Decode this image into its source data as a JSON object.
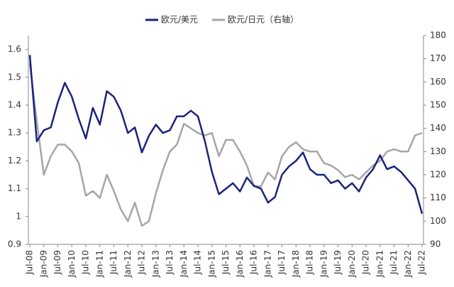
{
  "chart_data": {
    "type": "line",
    "categories": [
      "Jul-08",
      null,
      "Jan-09",
      null,
      "Jul-09",
      null,
      "Jan-10",
      null,
      "Jul-10",
      null,
      "Jan-11",
      null,
      "Jul-11",
      null,
      "Jan-12",
      null,
      "Jul-12",
      null,
      "Jan-13",
      null,
      "Jul-13",
      null,
      "Jan-14",
      null,
      "Jul-14",
      null,
      "Jan-15",
      null,
      "Jul-15",
      null,
      "Jan-16",
      null,
      "Jul-16",
      null,
      "Jan-17",
      null,
      "Jul-17",
      null,
      "Jan-18",
      null,
      "Jul-18",
      null,
      "Jan-19",
      null,
      "Jul-19",
      null,
      "Jan-20",
      null,
      "Jul-20",
      null,
      "Jan-21",
      null,
      "Jul-21",
      null,
      "Jan-22",
      null,
      "Jul-22"
    ],
    "series": [
      {
        "name": "欧元/美元",
        "color": "#1c2379",
        "axis": "y",
        "values": [
          1.58,
          1.27,
          1.31,
          1.32,
          1.41,
          1.48,
          1.43,
          1.35,
          1.28,
          1.39,
          1.33,
          1.45,
          1.43,
          1.38,
          1.3,
          1.32,
          1.23,
          1.29,
          1.33,
          1.3,
          1.31,
          1.36,
          1.36,
          1.38,
          1.36,
          1.27,
          1.16,
          1.08,
          1.1,
          1.12,
          1.09,
          1.14,
          1.11,
          1.1,
          1.05,
          1.07,
          1.15,
          1.18,
          1.2,
          1.23,
          1.17,
          1.15,
          1.15,
          1.12,
          1.13,
          1.1,
          1.12,
          1.09,
          1.14,
          1.17,
          1.22,
          1.17,
          1.18,
          1.16,
          1.13,
          1.1,
          1.01
        ]
      },
      {
        "name": "欧元/日元（右轴）",
        "color": "#a6a6a6",
        "axis": "y2",
        "values": [
          168,
          143,
          120,
          128,
          133,
          133,
          130,
          125,
          111,
          113,
          110,
          120,
          113,
          105,
          100,
          108,
          98,
          100,
          112,
          122,
          130,
          133,
          142,
          140,
          138,
          137,
          138,
          128,
          135,
          135,
          130,
          124,
          115,
          115,
          121,
          118,
          128,
          132,
          134,
          131,
          130,
          130,
          125,
          124,
          122,
          119,
          120,
          118,
          121,
          124,
          126,
          130,
          131,
          130,
          130,
          137,
          138
        ]
      }
    ],
    "ylim": [
      0.9,
      1.65
    ],
    "yticks": [
      0.9,
      1,
      1.1,
      1.2,
      1.3,
      1.4,
      1.5,
      1.6
    ],
    "y2lim": [
      90,
      180
    ],
    "y2ticks": [
      90,
      100,
      110,
      120,
      130,
      140,
      150,
      160,
      170,
      180
    ],
    "legend": "top"
  }
}
